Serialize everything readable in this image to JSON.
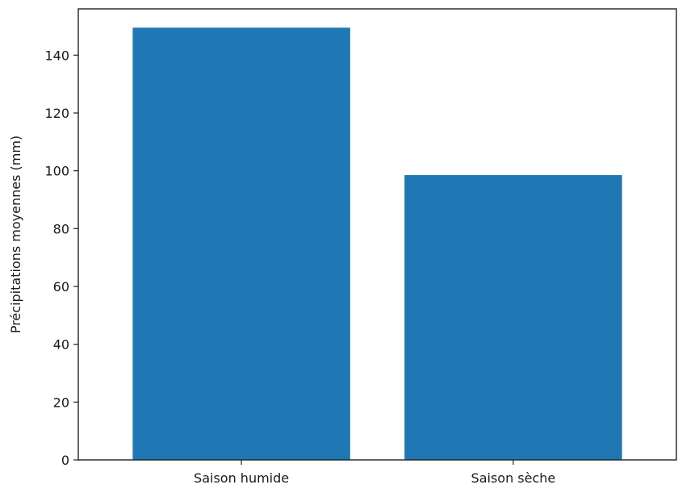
{
  "chart_data": {
    "type": "bar",
    "title": "",
    "categories": [
      "Saison humide",
      "Saison sèche"
    ],
    "values": [
      149.5,
      98.5
    ],
    "xlabel": "",
    "ylabel": "Précipitations moyennes (mm)",
    "ylim": [
      0,
      156
    ],
    "yticks": [
      0,
      20,
      40,
      60,
      80,
      100,
      120,
      140
    ],
    "grid": false,
    "legend": "none",
    "bar_color": "#1f77b4"
  }
}
